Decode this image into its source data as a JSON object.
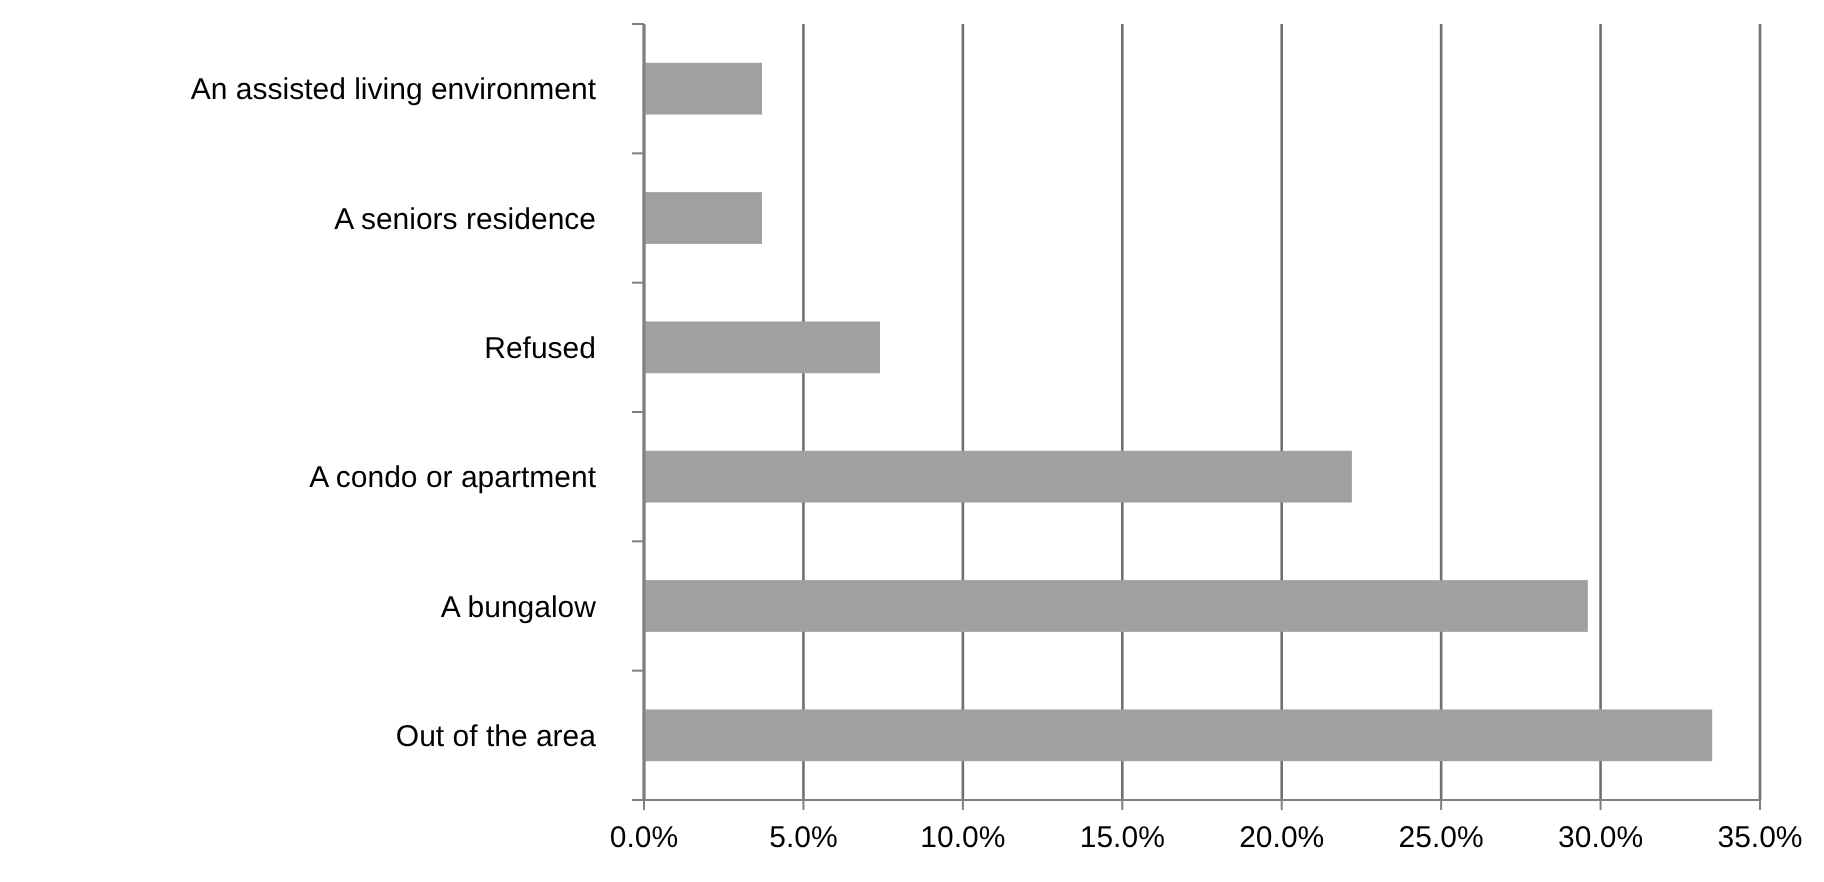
{
  "chart_data": {
    "type": "bar",
    "orientation": "horizontal",
    "categories": [
      "An assisted living environment",
      "A seniors residence",
      "Refused",
      "A condo or apartment",
      "A bungalow",
      "Out of the area"
    ],
    "values": [
      3.7,
      3.7,
      7.4,
      22.2,
      29.6,
      33.5
    ],
    "color": "#a0a0a0",
    "xlim": [
      0,
      35
    ],
    "xticks": [
      {
        "value": 0,
        "label": "0.0%"
      },
      {
        "value": 5,
        "label": "5.0%"
      },
      {
        "value": 10,
        "label": "10.0%"
      },
      {
        "value": 15,
        "label": "15.0%"
      },
      {
        "value": 20,
        "label": "20.0%"
      },
      {
        "value": 25,
        "label": "25.0%"
      },
      {
        "value": 30,
        "label": "30.0%"
      },
      {
        "value": 35,
        "label": "35.0%"
      }
    ],
    "grid": "x"
  }
}
